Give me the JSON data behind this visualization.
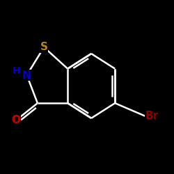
{
  "bg_color": "#000000",
  "fig_bg": "#000000",
  "bond_color": "#ffffff",
  "bond_lw": 1.8,
  "atom_S_color": "#b8860b",
  "atom_N_color": "#0000cd",
  "atom_O_color": "#cc0000",
  "atom_Br_color": "#8b0000",
  "font_size": 11,
  "font_weight": "bold",
  "S1": [
    3.5,
    7.6
  ],
  "N2": [
    2.7,
    6.3
  ],
  "C3": [
    3.2,
    5.0
  ],
  "O3": [
    2.2,
    4.2
  ],
  "C3a": [
    4.6,
    5.0
  ],
  "C7a": [
    4.6,
    6.6
  ],
  "C7": [
    5.7,
    7.3
  ],
  "C6": [
    6.8,
    6.6
  ],
  "C5": [
    6.8,
    5.0
  ],
  "C4": [
    5.7,
    4.3
  ],
  "Br": [
    8.2,
    4.4
  ],
  "xlim": [
    1.5,
    9.5
  ],
  "ylim": [
    2.5,
    9.0
  ]
}
